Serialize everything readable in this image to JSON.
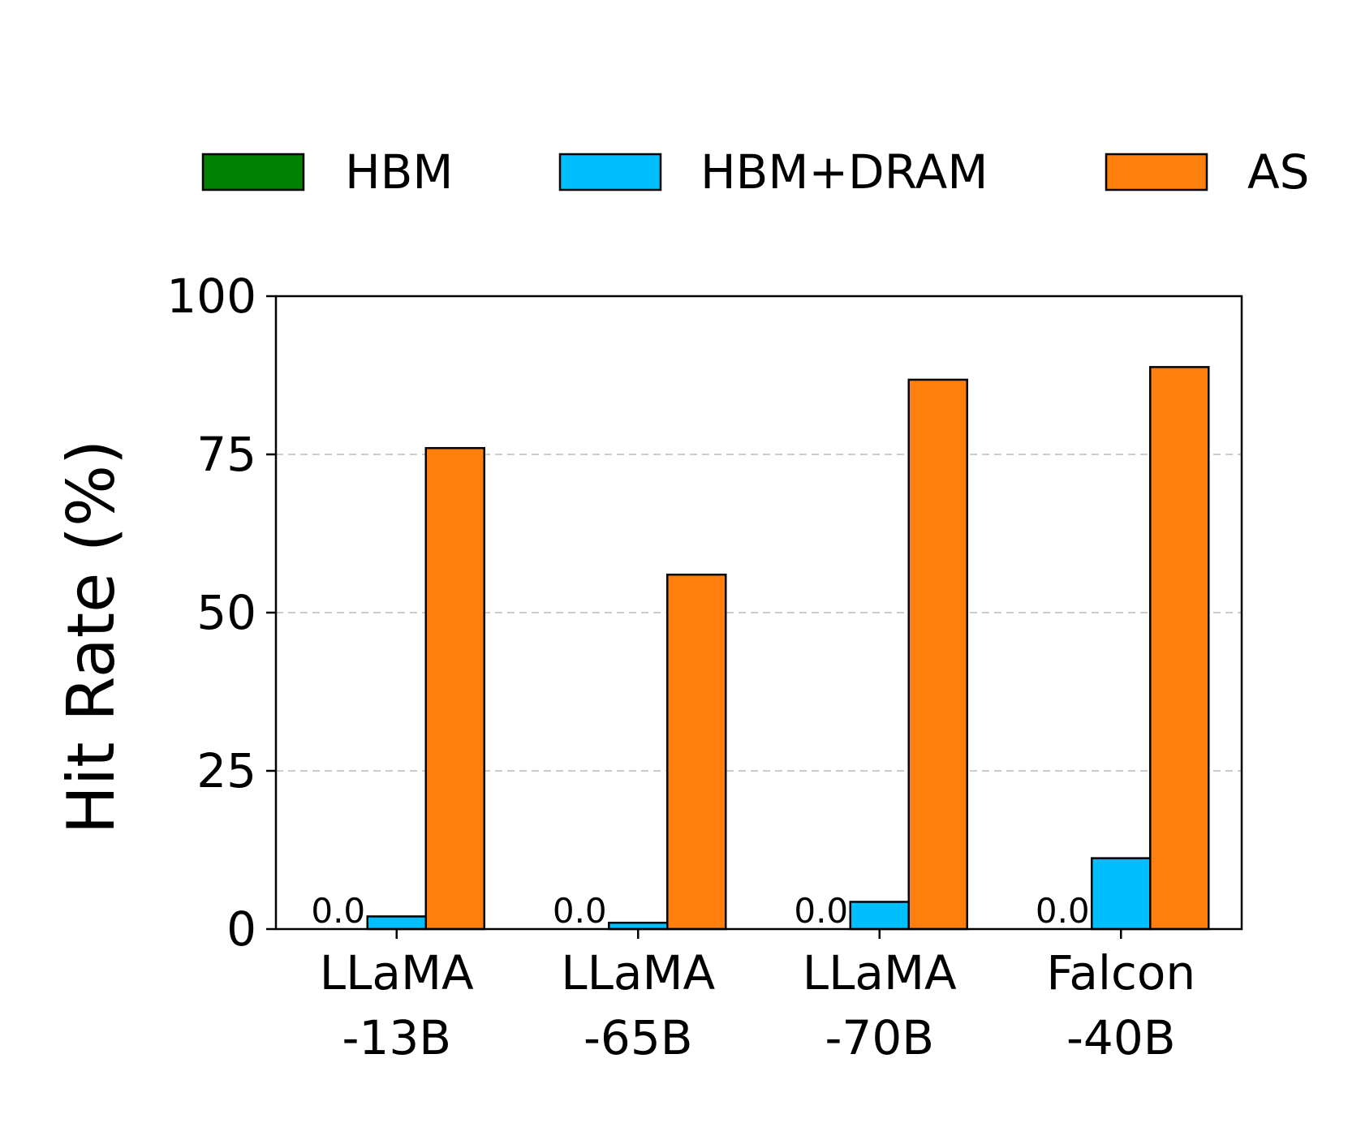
{
  "chart_data": {
    "type": "bar",
    "title": "",
    "xlabel": "",
    "ylabel": "Hit Rate (%)",
    "ylim": [
      0,
      100
    ],
    "yticks": [
      0,
      25,
      50,
      75,
      100
    ],
    "grid": "y-dashed",
    "legend": "top",
    "categories": [
      [
        "LLaMA",
        "-13B"
      ],
      [
        "LLaMA",
        "-65B"
      ],
      [
        "LLaMA",
        "-70B"
      ],
      [
        "Falcon",
        "-40B"
      ]
    ],
    "series": [
      {
        "name": "HBM",
        "color": "#008000",
        "values": [
          0.0,
          0.0,
          0.0,
          0.0
        ],
        "data_labels": [
          "0.0",
          "0.0",
          "0.0",
          "0.0"
        ]
      },
      {
        "name": "HBM+DRAM",
        "color": "#00bfff",
        "values": [
          2.0,
          1.0,
          4.3,
          11.2
        ]
      },
      {
        "name": "AS",
        "color": "#ff7f0e",
        "values": [
          76.0,
          56.0,
          86.8,
          88.8
        ]
      }
    ]
  }
}
